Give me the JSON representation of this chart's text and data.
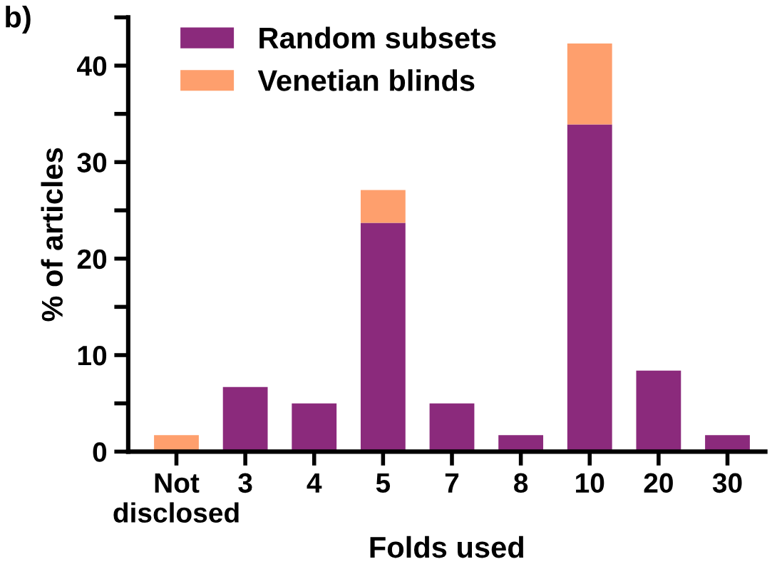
{
  "chart_data": {
    "type": "bar",
    "stacked": true,
    "xlabel": "Folds used",
    "ylabel": "% of articles",
    "annotations": [
      "b)"
    ],
    "categories": [
      "Not\ndisclosed",
      "3",
      "4",
      "5",
      "7",
      "8",
      "10",
      "20",
      "30"
    ],
    "series": [
      {
        "name": "Random subsets",
        "color": "#8b2a7c",
        "values": [
          0,
          6.7,
          5.0,
          23.7,
          5.0,
          1.7,
          33.9,
          8.4,
          1.7
        ]
      },
      {
        "name": "Venetian blinds",
        "color": "#fe9f6d",
        "values": [
          1.7,
          0,
          0,
          3.4,
          0,
          0,
          8.4,
          0,
          0
        ]
      }
    ],
    "ylim": [
      0,
      45
    ],
    "yticks": [
      0,
      {
        "value": 5,
        "label": null
      },
      10,
      {
        "value": 15,
        "label": null
      },
      20,
      {
        "value": 25,
        "label": null
      },
      30,
      {
        "value": 35,
        "label": null
      },
      40,
      {
        "value": 45,
        "label": null
      }
    ],
    "grid": false,
    "legend": "top left"
  }
}
